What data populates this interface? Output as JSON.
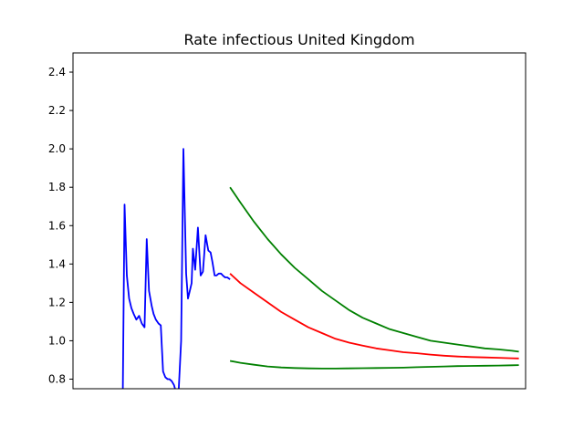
{
  "chart_data": {
    "type": "line",
    "title": "Rate infectious United Kingdom",
    "xlabel": "",
    "ylabel": "",
    "xlim": [
      0,
      100
    ],
    "ylim": [
      0.75,
      2.5
    ],
    "yticks": [
      "0.8",
      "1.0",
      "1.2",
      "1.4",
      "1.6",
      "1.8",
      "2.0",
      "2.2",
      "2.4"
    ],
    "grid": false,
    "legend": "none",
    "series": [
      {
        "color": "#0000ff",
        "x": [
          11.0,
          11.4,
          11.9,
          12.4,
          12.9,
          13.4,
          14.0,
          14.6,
          15.2,
          15.8,
          16.3,
          16.8,
          17.4,
          17.8,
          18.3,
          18.9,
          19.4,
          19.9,
          20.4,
          20.9,
          21.3,
          21.8,
          22.3,
          22.8,
          23.3,
          23.9,
          24.4,
          25.0,
          25.4,
          25.8,
          26.2,
          26.5,
          27.0,
          27.6,
          28.2,
          28.7,
          29.0,
          29.3,
          29.9,
          30.4,
          30.8,
          31.3,
          31.7,
          32.2,
          32.7,
          33.1,
          33.6,
          34.1,
          34.7
        ],
        "y": [
          0.74,
          1.71,
          1.34,
          1.22,
          1.17,
          1.14,
          1.11,
          1.13,
          1.09,
          1.07,
          1.53,
          1.26,
          1.18,
          1.14,
          1.11,
          1.09,
          1.08,
          0.84,
          0.81,
          0.8,
          0.8,
          0.79,
          0.77,
          0.73,
          0.72,
          1.0,
          2.0,
          1.35,
          1.22,
          1.26,
          1.3,
          1.48,
          1.37,
          1.59,
          1.34,
          1.36,
          1.45,
          1.55,
          1.47,
          1.46,
          1.41,
          1.34,
          1.34,
          1.35,
          1.35,
          1.34,
          1.33,
          1.33,
          1.32
        ]
      },
      {
        "color": "#ff0000",
        "x": [
          34.7,
          37,
          40,
          43,
          46,
          49,
          52,
          55,
          58,
          61,
          64,
          67,
          70,
          73,
          76,
          79,
          82,
          85,
          88,
          91,
          94,
          97,
          98.5
        ],
        "y": [
          1.35,
          1.3,
          1.25,
          1.2,
          1.15,
          1.11,
          1.07,
          1.04,
          1.01,
          0.99,
          0.975,
          0.96,
          0.95,
          0.94,
          0.935,
          0.928,
          0.922,
          0.918,
          0.915,
          0.913,
          0.911,
          0.909,
          0.908
        ]
      },
      {
        "color": "#008000",
        "x": [
          34.7,
          37,
          40,
          43,
          46,
          49,
          52,
          55,
          58,
          61,
          64,
          67,
          70,
          73,
          76,
          79,
          82,
          85,
          88,
          91,
          94,
          97,
          98.5
        ],
        "y": [
          1.8,
          1.72,
          1.62,
          1.53,
          1.45,
          1.38,
          1.32,
          1.26,
          1.21,
          1.16,
          1.12,
          1.09,
          1.06,
          1.04,
          1.02,
          1.0,
          0.99,
          0.98,
          0.97,
          0.96,
          0.955,
          0.948,
          0.943
        ]
      },
      {
        "color": "#008000",
        "x": [
          34.7,
          37,
          40,
          43,
          46,
          49,
          52,
          55,
          58,
          61,
          64,
          67,
          70,
          73,
          76,
          79,
          82,
          85,
          88,
          91,
          94,
          97,
          98.5
        ],
        "y": [
          0.895,
          0.885,
          0.875,
          0.866,
          0.861,
          0.858,
          0.856,
          0.855,
          0.855,
          0.856,
          0.857,
          0.858,
          0.859,
          0.86,
          0.862,
          0.864,
          0.866,
          0.868,
          0.869,
          0.87,
          0.871,
          0.872,
          0.873
        ]
      }
    ]
  }
}
